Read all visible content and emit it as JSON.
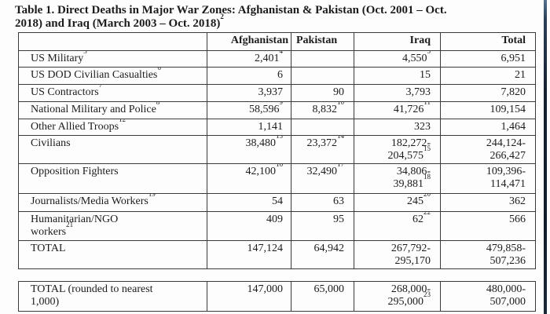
{
  "page": {
    "background_color": "#fdfdfd",
    "edge_strip_color": "#15202e"
  },
  "title": "Table 1. Direct Deaths in Major War Zones: Afghanistan & Pakistan (Oct. 2001 – Oct.\n2018) and Iraq (March 2003 – Oct. 2018)^2",
  "table": {
    "columns": [
      "",
      "Afghanistan",
      "Pakistan",
      "Iraq",
      "Total"
    ],
    "rows": [
      {
        "label": "US Military^3",
        "afghanistan": "2,401^4",
        "pakistan": "",
        "iraq": "4,550^5",
        "total": "6,951"
      },
      {
        "label": "US DOD Civilian Casualties^6",
        "afghanistan": "6",
        "pakistan": "",
        "iraq": "15",
        "total": "21"
      },
      {
        "label": "US Contractors^7",
        "afghanistan": "3,937",
        "pakistan": "90",
        "iraq": "3,793",
        "total": "7,820"
      },
      {
        "label": "National Military and Police^8",
        "afghanistan": "58,596^9",
        "pakistan": "8,832^10",
        "iraq": "41,726^11",
        "total": "109,154"
      },
      {
        "label": "Other Allied Troops^12",
        "afghanistan": "1,141",
        "pakistan": "",
        "iraq": "323",
        "total": "1,464"
      },
      {
        "label": "Civilians",
        "afghanistan": "38,480^13",
        "pakistan": "23,372^14",
        "iraq": "182,272-\n204,575^15",
        "total": "244,124-\n266,427"
      },
      {
        "label": "Opposition Fighters",
        "afghanistan": "42,100^16",
        "pakistan": "32,490^17",
        "iraq": "34,806-\n39,881^18",
        "total": "109,396-\n114,471"
      },
      {
        "label": "Journalists/Media Workers^19",
        "afghanistan": "54",
        "pakistan": "63",
        "iraq": "245^20",
        "total": "362"
      },
      {
        "label": "Humanitarian/NGO\nworkers^21",
        "afghanistan": "409",
        "pakistan": "95",
        "iraq": "62^22",
        "total": "566"
      },
      {
        "label": "TOTAL",
        "afghanistan": "147,124",
        "pakistan": "64,942",
        "iraq": "267,792-\n295,170",
        "total": "479,858-\n507,236"
      }
    ]
  },
  "summary_table": {
    "rows": [
      {
        "label": "TOTAL (rounded to nearest\n1,000)",
        "afghanistan": "147,000",
        "pakistan": "65,000",
        "iraq": "268,000-\n295,000^23",
        "total": "480,000-\n507,000"
      }
    ]
  }
}
